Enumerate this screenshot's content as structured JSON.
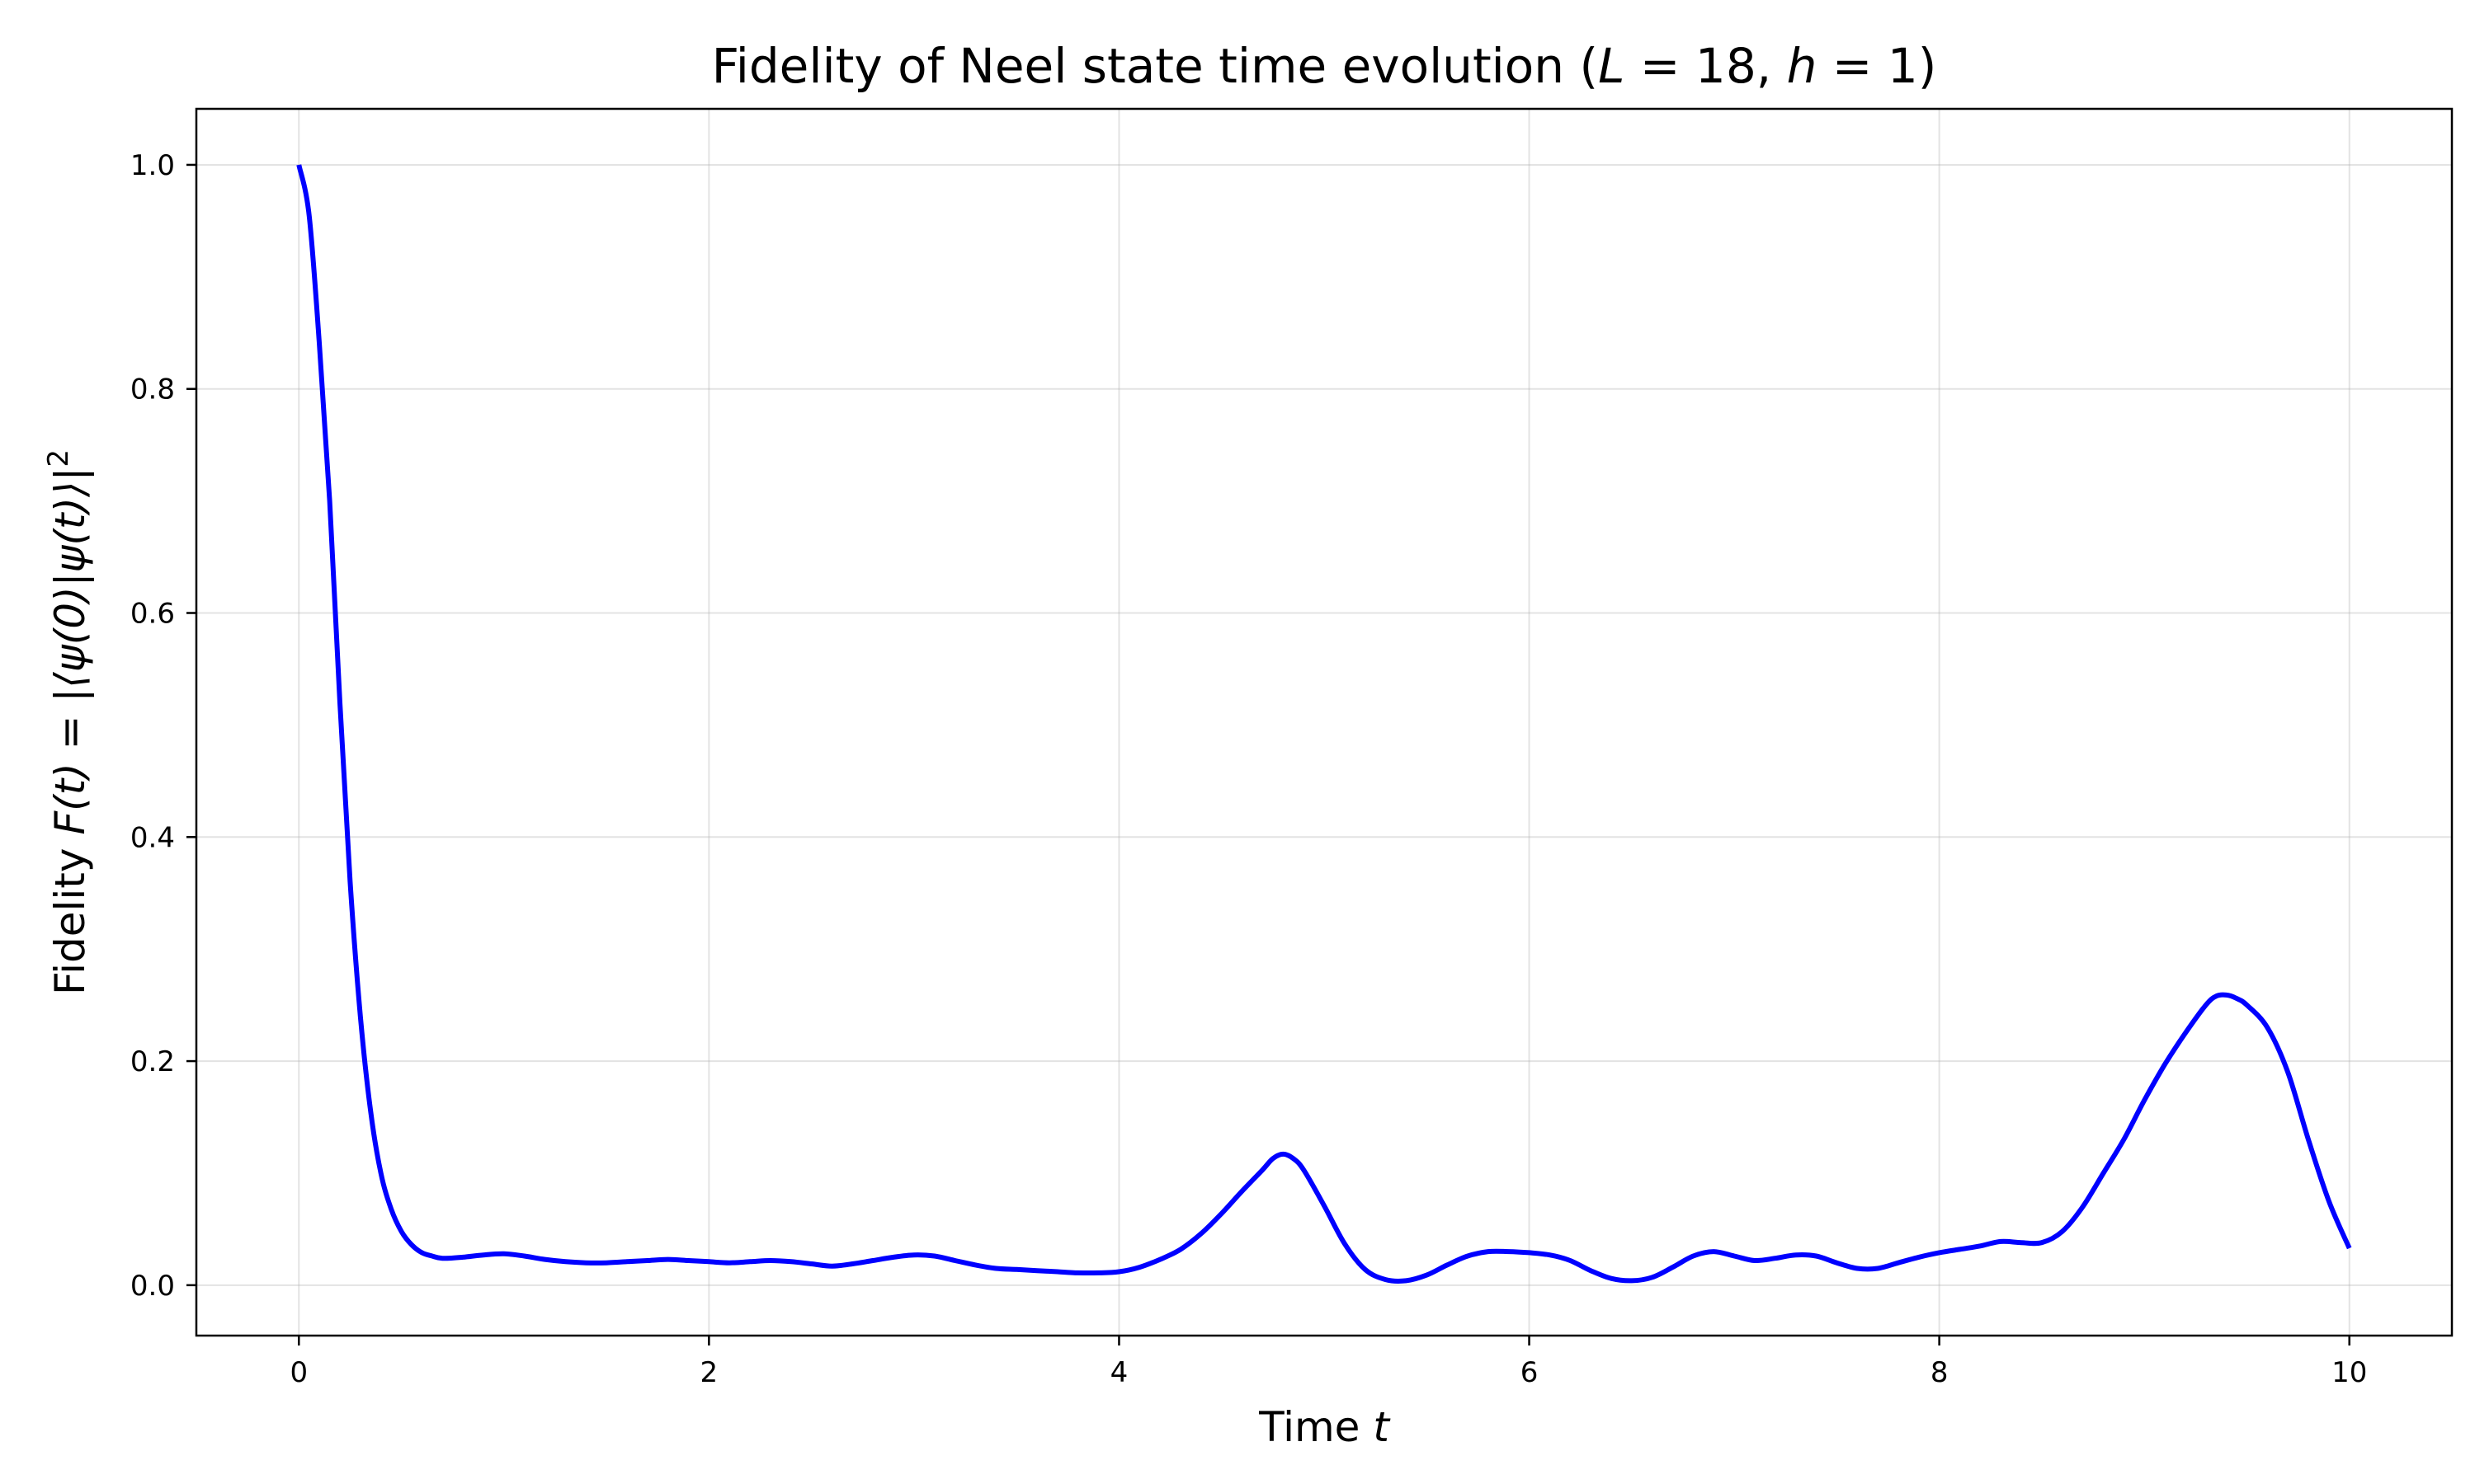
{
  "chart_data": {
    "type": "line",
    "title_prefix": "Fidelity of Neel state time evolution (",
    "title_math_L": "L",
    "title_eq1": " = 18, ",
    "title_math_h": "h",
    "title_eq2": " = 1)",
    "xlabel_text": "Time ",
    "xlabel_math": "t",
    "ylabel_text": "Fidelity ",
    "ylabel_math": "F(t) = |⟨ψ(0)|ψ(t)⟩|",
    "ylabel_sup": "2",
    "xlim": [
      -0.5,
      10.5
    ],
    "ylim": [
      -0.045,
      1.05
    ],
    "xticks": [
      0,
      2,
      4,
      6,
      8,
      10
    ],
    "xtick_labels": [
      "0",
      "2",
      "4",
      "6",
      "8",
      "10"
    ],
    "yticks": [
      0.0,
      0.2,
      0.4,
      0.6,
      0.8,
      1.0
    ],
    "ytick_labels": [
      "0.0",
      "0.2",
      "0.4",
      "0.6",
      "0.8",
      "1.0"
    ],
    "grid": true,
    "series": [
      {
        "color": "#0000ff",
        "x": [
          0,
          0.05,
          0.1,
          0.15,
          0.2,
          0.25,
          0.3,
          0.35,
          0.4,
          0.45,
          0.5,
          0.55,
          0.6,
          0.65,
          0.7,
          0.8,
          0.9,
          1.0,
          1.1,
          1.2,
          1.3,
          1.4,
          1.5,
          1.6,
          1.7,
          1.8,
          1.9,
          2.0,
          2.1,
          2.2,
          2.3,
          2.4,
          2.5,
          2.6,
          2.7,
          2.8,
          2.9,
          3.0,
          3.1,
          3.2,
          3.3,
          3.4,
          3.5,
          3.6,
          3.7,
          3.8,
          3.9,
          4.0,
          4.1,
          4.2,
          4.3,
          4.4,
          4.5,
          4.6,
          4.7,
          4.75,
          4.8,
          4.85,
          4.9,
          5.0,
          5.1,
          5.2,
          5.3,
          5.4,
          5.5,
          5.6,
          5.7,
          5.8,
          5.9,
          6.0,
          6.1,
          6.2,
          6.3,
          6.4,
          6.5,
          6.6,
          6.7,
          6.8,
          6.9,
          7.0,
          7.1,
          7.2,
          7.3,
          7.4,
          7.5,
          7.6,
          7.7,
          7.8,
          7.9,
          8.0,
          8.1,
          8.2,
          8.3,
          8.4,
          8.5,
          8.6,
          8.7,
          8.8,
          8.9,
          9.0,
          9.1,
          9.2,
          9.3,
          9.35,
          9.4,
          9.45,
          9.5,
          9.6,
          9.7,
          9.8,
          9.9,
          10.0
        ],
        "y": [
          1.0,
          0.955,
          0.84,
          0.7,
          0.52,
          0.36,
          0.24,
          0.155,
          0.1,
          0.068,
          0.048,
          0.036,
          0.029,
          0.026,
          0.024,
          0.025,
          0.027,
          0.028,
          0.026,
          0.023,
          0.021,
          0.02,
          0.02,
          0.021,
          0.022,
          0.023,
          0.022,
          0.021,
          0.02,
          0.021,
          0.022,
          0.021,
          0.019,
          0.017,
          0.019,
          0.022,
          0.025,
          0.027,
          0.026,
          0.022,
          0.018,
          0.015,
          0.014,
          0.013,
          0.012,
          0.011,
          0.011,
          0.012,
          0.016,
          0.023,
          0.032,
          0.046,
          0.064,
          0.084,
          0.103,
          0.113,
          0.117,
          0.113,
          0.103,
          0.071,
          0.037,
          0.014,
          0.005,
          0.004,
          0.009,
          0.018,
          0.026,
          0.03,
          0.03,
          0.029,
          0.027,
          0.022,
          0.013,
          0.006,
          0.004,
          0.007,
          0.016,
          0.026,
          0.03,
          0.026,
          0.022,
          0.024,
          0.027,
          0.026,
          0.02,
          0.015,
          0.015,
          0.02,
          0.025,
          0.029,
          0.032,
          0.035,
          0.039,
          0.038,
          0.038,
          0.048,
          0.07,
          0.1,
          0.13,
          0.165,
          0.197,
          0.225,
          0.25,
          0.258,
          0.259,
          0.256,
          0.25,
          0.23,
          0.19,
          0.13,
          0.075,
          0.033
        ]
      }
    ]
  }
}
